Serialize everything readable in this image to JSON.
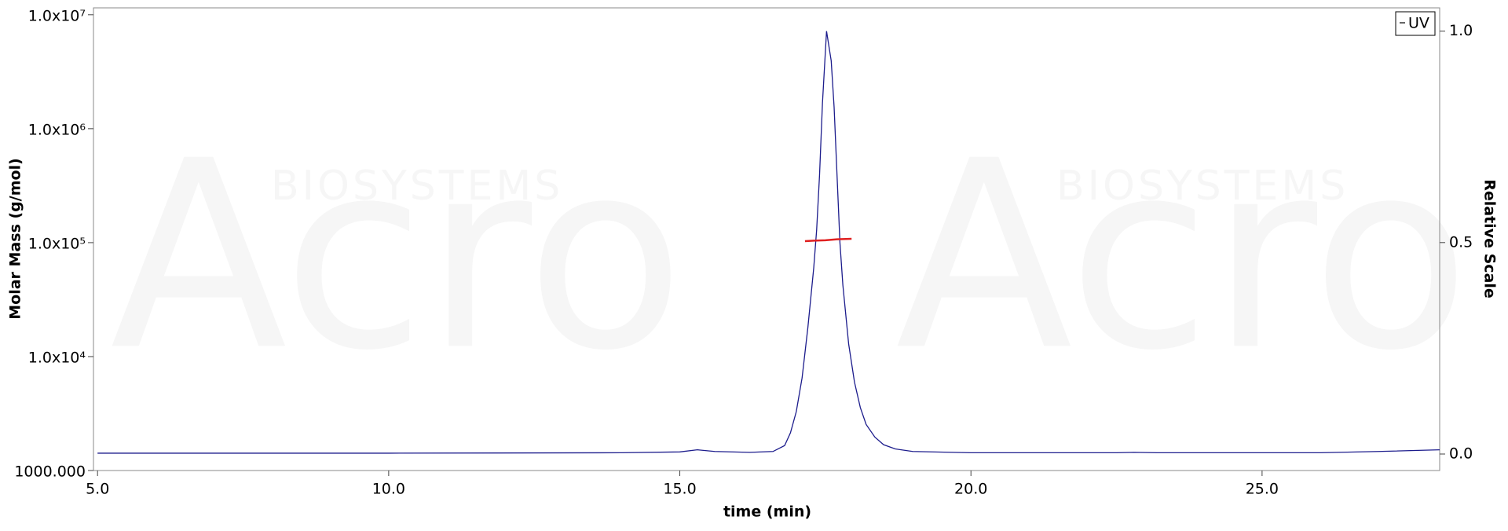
{
  "chart_data": {
    "type": "line",
    "xlabel": "time (min)",
    "ylabel": "Molar Mass (g/mol)",
    "y2label": "Relative Scale",
    "watermark": [
      "Acro",
      "BIOSYSTEMS"
    ],
    "xlim": [
      4.93,
      28.05
    ],
    "xticks": [
      {
        "value": 5,
        "label": "5.0"
      },
      {
        "value": 10,
        "label": "10.0"
      },
      {
        "value": 15,
        "label": "15.0"
      },
      {
        "value": 20,
        "label": "20.0"
      },
      {
        "value": 25,
        "label": "25.0"
      }
    ],
    "yscale": "log",
    "ylim": [
      1000,
      11500000
    ],
    "yticks": [
      {
        "value": 1000,
        "label": "1000.000"
      },
      {
        "value": 10000,
        "label": "1.0x10⁴"
      },
      {
        "value": 100000,
        "label": "1.0x10⁵"
      },
      {
        "value": 1000000,
        "label": "1.0x10⁶"
      },
      {
        "value": 10000000,
        "label": "1.0x10⁷"
      }
    ],
    "y2lim": [
      -0.039,
      1.055
    ],
    "y2ticks": [
      {
        "value": 0,
        "label": "0.0"
      },
      {
        "value": 0.5,
        "label": "0.5"
      },
      {
        "value": 1,
        "label": "1.0"
      }
    ],
    "legend": "top-right",
    "series": [
      {
        "name": "UV",
        "color": "#1c1c8c",
        "axis": "y2",
        "x": [
          5.0,
          10.0,
          14.0,
          15.0,
          15.3,
          15.6,
          16.2,
          16.6,
          16.8,
          16.9,
          17.0,
          17.1,
          17.2,
          17.3,
          17.35,
          17.4,
          17.45,
          17.52,
          17.6,
          17.65,
          17.7,
          17.75,
          17.8,
          17.9,
          18.0,
          18.1,
          18.2,
          18.35,
          18.5,
          18.7,
          19.0,
          20.0,
          22.5,
          22.8,
          23.2,
          26.0,
          27.0,
          28.05
        ],
        "values": [
          0.002,
          0.002,
          0.003,
          0.005,
          0.01,
          0.006,
          0.004,
          0.006,
          0.02,
          0.05,
          0.1,
          0.18,
          0.3,
          0.44,
          0.53,
          0.66,
          0.83,
          1.0,
          0.93,
          0.82,
          0.66,
          0.5,
          0.4,
          0.26,
          0.17,
          0.11,
          0.07,
          0.04,
          0.022,
          0.012,
          0.006,
          0.003,
          0.003,
          0.004,
          0.003,
          0.003,
          0.006,
          0.01
        ]
      },
      {
        "color": "#e02020",
        "axis": "y",
        "x": [
          17.15,
          17.3,
          17.5,
          17.7,
          17.95
        ],
        "values": [
          103000,
          104000,
          105000,
          107000,
          108000
        ]
      }
    ]
  }
}
